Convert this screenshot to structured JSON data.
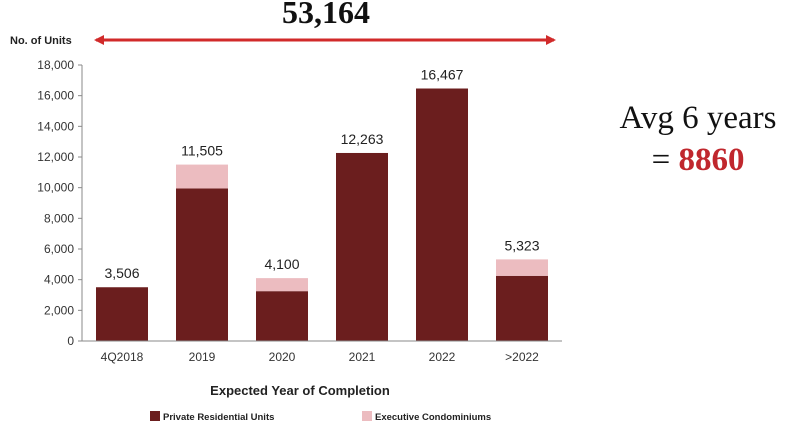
{
  "headline": {
    "total": "53,164"
  },
  "annotation": {
    "avg_label": "Avg 6 years",
    "equals": "=",
    "avg_value": "8860"
  },
  "colors": {
    "private": "#6b1e1e",
    "ec": "#ecbcc0",
    "arrow": "#d12a2a",
    "avg_value": "#c0272d"
  },
  "chart_data": {
    "type": "bar",
    "stacked": true,
    "categories": [
      "4Q2018",
      "2019",
      "2020",
      "2021",
      "2022",
      ">2022"
    ],
    "series": [
      {
        "name": "Private Residential Units",
        "values": [
          3506,
          9950,
          3250,
          12263,
          16467,
          4250
        ]
      },
      {
        "name": "Executive Condominiums",
        "values": [
          0,
          1555,
          850,
          0,
          0,
          1073
        ]
      }
    ],
    "totals": [
      3506,
      11505,
      4100,
      12263,
      16467,
      5323
    ],
    "total_labels": [
      "3,506",
      "11,505",
      "4,100",
      "12,263",
      "16,467",
      "5,323"
    ],
    "ylabel": "No. of Units",
    "xlabel": "Expected Year of Completion",
    "ylim": [
      0,
      18000
    ],
    "yticks": [
      0,
      2000,
      4000,
      6000,
      8000,
      10000,
      12000,
      14000,
      16000,
      18000
    ],
    "ytick_labels": [
      "0",
      "2,000",
      "4,000",
      "6,000",
      "8,000",
      "10,000",
      "12,000",
      "14,000",
      "16,000",
      "18,000"
    ],
    "grid": false,
    "legend": "bottom"
  }
}
